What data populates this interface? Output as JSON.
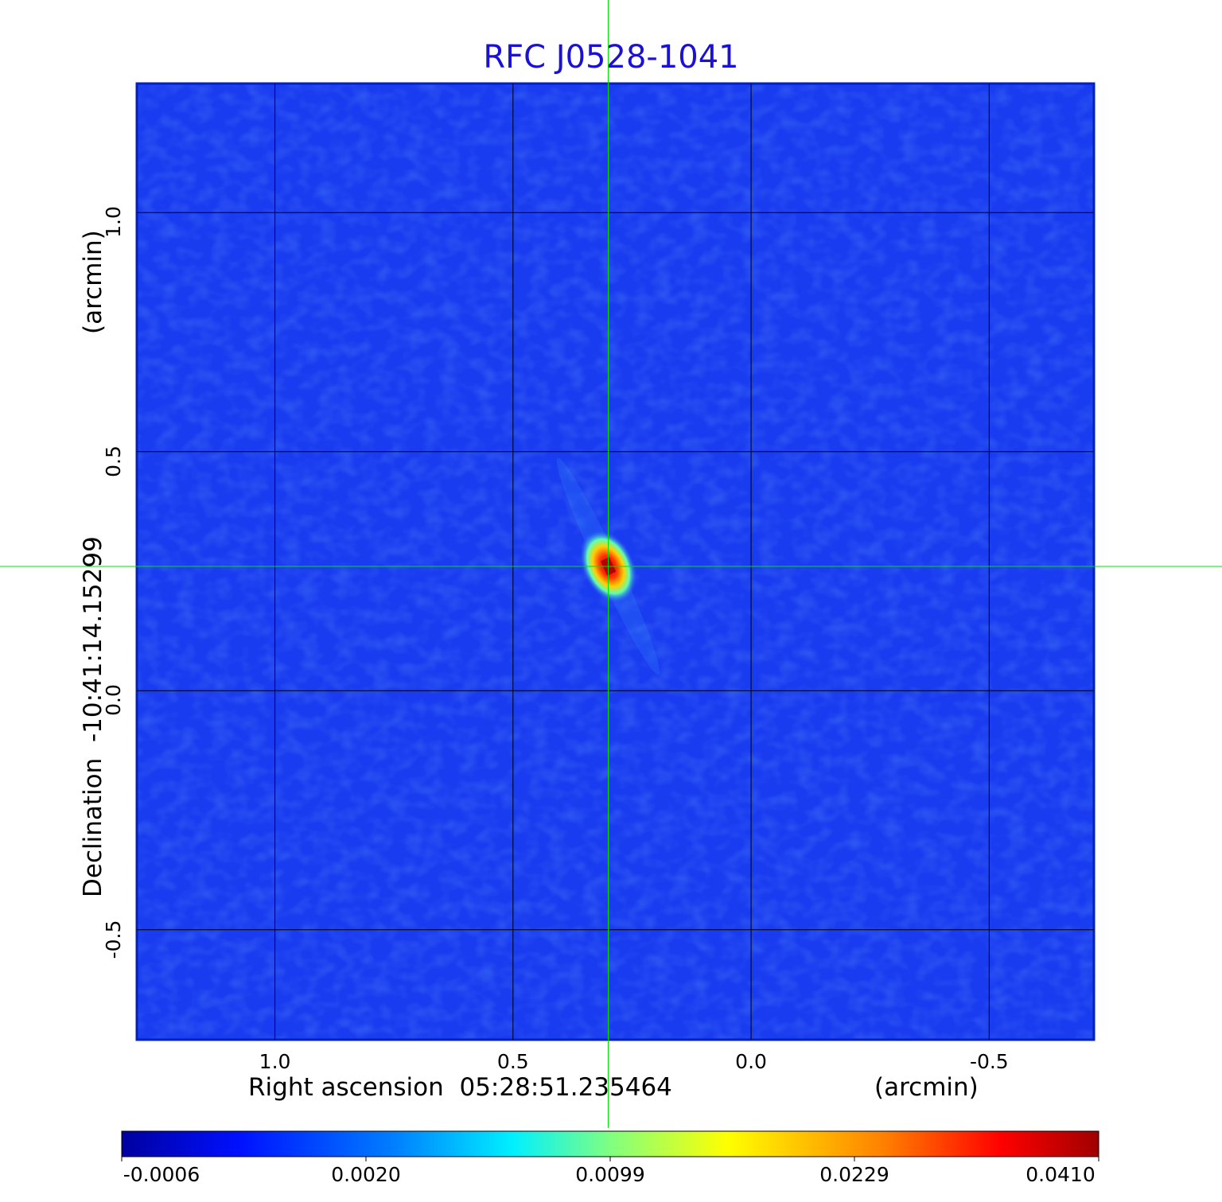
{
  "chart_data": {
    "type": "heatmap",
    "title": "RFC J0528-1041",
    "xlabel": "Right ascension  05:28:51.235464",
    "xunit": "(arcmin)",
    "ylabel": "Declination  -10:41:14.15299",
    "yunit": "(arcmin)",
    "x_ticks": [
      "1.0",
      "0.5",
      "0.0",
      "-0.5"
    ],
    "x_tick_values": [
      1.0,
      0.5,
      0.0,
      -0.5
    ],
    "y_ticks": [
      "1.0",
      "0.5",
      "0.0",
      "-0.5"
    ],
    "y_tick_values": [
      1.0,
      0.5,
      0.0,
      -0.5
    ],
    "xlim": [
      1.29,
      -0.72
    ],
    "ylim": [
      -0.73,
      1.27
    ],
    "grid": true,
    "crosshair": {
      "x": 0.3,
      "y": 0.26,
      "color": "#00e000"
    },
    "source": {
      "x": 0.3,
      "y": 0.26,
      "peak": 0.041
    },
    "colorbar": {
      "labels": [
        "-0.0006",
        "0.0020",
        "0.0099",
        "0.0229",
        "0.0410"
      ],
      "colormap": "jet",
      "placement": "bottom"
    },
    "colors": {
      "title": "#1a10d6",
      "background_map": "#1a3cf0"
    }
  }
}
